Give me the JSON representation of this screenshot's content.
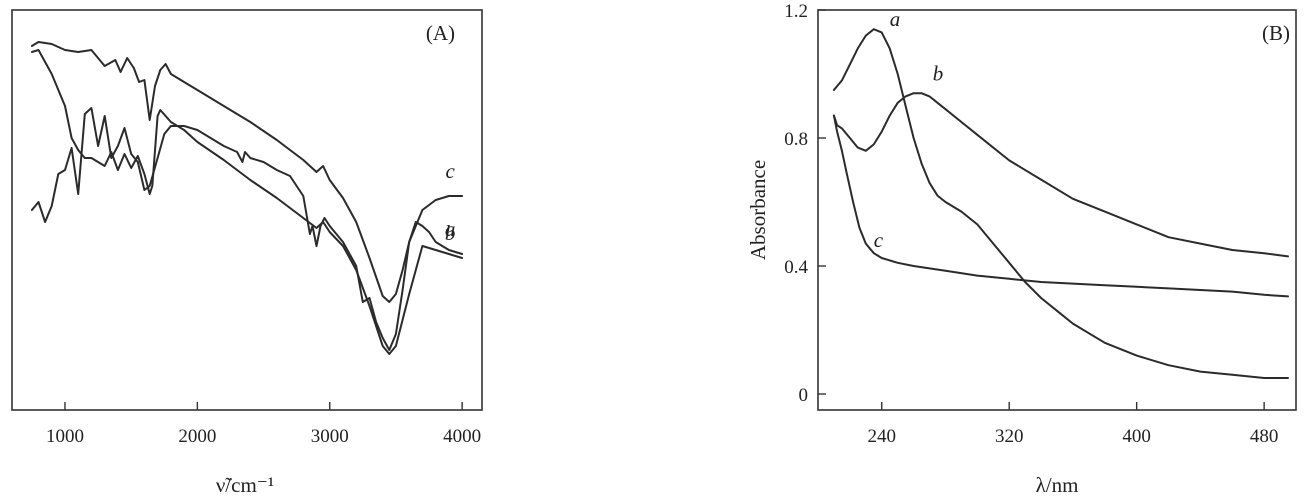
{
  "chart_data": [
    {
      "panel": "(A)",
      "type": "line",
      "xlabel": "ν̃/cm⁻¹",
      "ylabel": "",
      "xlim": [
        600,
        4150
      ],
      "x_ticks": [
        1000,
        2000,
        3000,
        4000
      ],
      "y_ticks": [],
      "grid": false,
      "note_y": "unlabeled y-axis; values are relative transmittance with vertical offsets",
      "series": [
        {
          "name": "a",
          "x": [
            750,
            800,
            900,
            1000,
            1100,
            1200,
            1300,
            1380,
            1420,
            1470,
            1520,
            1560,
            1600,
            1640,
            1680,
            1720,
            1760,
            1800,
            1900,
            2000,
            2200,
            2400,
            2600,
            2800,
            2900,
            2950,
            3000,
            3100,
            3200,
            3300,
            3400,
            3450,
            3500,
            3550,
            3600,
            3650,
            3700,
            3750,
            3800,
            3900,
            4000
          ],
          "y": [
            9.1,
            9.2,
            9.15,
            9.0,
            8.95,
            9.0,
            8.6,
            8.75,
            8.45,
            8.8,
            8.55,
            8.2,
            8.25,
            7.25,
            8.1,
            8.5,
            8.65,
            8.4,
            8.2,
            8.0,
            7.6,
            7.2,
            6.75,
            6.25,
            5.95,
            6.1,
            5.75,
            5.3,
            4.7,
            3.8,
            2.85,
            2.7,
            2.9,
            3.5,
            4.2,
            4.7,
            4.6,
            4.45,
            4.2,
            4.0,
            3.9
          ]
        },
        {
          "name": "b",
          "x": [
            750,
            800,
            900,
            1000,
            1050,
            1100,
            1150,
            1200,
            1300,
            1350,
            1400,
            1450,
            1500,
            1550,
            1600,
            1640,
            1660,
            1700,
            1720,
            1800,
            1900,
            2000,
            2200,
            2400,
            2600,
            2800,
            2900,
            2950,
            3000,
            3100,
            3200,
            3300,
            3400,
            3450,
            3500,
            3600,
            3700,
            3800,
            3900,
            4000
          ],
          "y": [
            8.95,
            9.0,
            8.4,
            7.6,
            6.8,
            6.5,
            6.3,
            6.3,
            6.1,
            6.45,
            6.0,
            6.4,
            6.05,
            6.35,
            5.9,
            5.4,
            5.6,
            7.35,
            7.5,
            7.2,
            7.0,
            6.7,
            6.25,
            5.75,
            5.3,
            4.8,
            4.55,
            4.7,
            4.45,
            4.1,
            3.5,
            2.6,
            1.6,
            1.4,
            1.6,
            2.9,
            4.1,
            4.0,
            3.9,
            3.8
          ]
        },
        {
          "name": "c",
          "x": [
            750,
            800,
            850,
            900,
            950,
            1000,
            1050,
            1100,
            1150,
            1200,
            1250,
            1300,
            1350,
            1400,
            1450,
            1500,
            1550,
            1600,
            1640,
            1700,
            1750,
            1800,
            1900,
            2000,
            2100,
            2200,
            2300,
            2340,
            2360,
            2400,
            2500,
            2600,
            2700,
            2800,
            2850,
            2870,
            2900,
            2930,
            2960,
            3000,
            3100,
            3200,
            3250,
            3300,
            3350,
            3400,
            3450,
            3500,
            3550,
            3600,
            3700,
            3800,
            3900,
            4000
          ],
          "y": [
            5.0,
            5.2,
            4.7,
            5.1,
            5.9,
            6.0,
            6.55,
            5.4,
            7.4,
            7.55,
            6.6,
            7.35,
            6.3,
            6.6,
            7.05,
            6.4,
            6.2,
            5.5,
            5.6,
            6.3,
            6.9,
            7.1,
            7.1,
            7.0,
            6.8,
            6.6,
            6.45,
            6.2,
            6.45,
            6.3,
            6.2,
            6.0,
            5.85,
            5.35,
            4.4,
            4.6,
            4.1,
            4.6,
            4.8,
            4.6,
            4.2,
            3.6,
            2.7,
            2.8,
            2.2,
            1.8,
            1.5,
            1.9,
            3.0,
            4.2,
            5.0,
            5.25,
            5.35,
            5.35
          ]
        }
      ],
      "series_labels": [
        "a",
        "b",
        "c"
      ]
    },
    {
      "panel": "(B)",
      "type": "line",
      "xlabel": "λ/nm",
      "ylabel": "Absorbance",
      "xlim": [
        200,
        500
      ],
      "ylim": [
        -0.05,
        1.2
      ],
      "x_ticks": [
        240,
        320,
        400,
        480
      ],
      "y_ticks": [
        0,
        0.4,
        0.8,
        1.2
      ],
      "y_tick_labels": [
        "0",
        "0.4",
        "0.8",
        "1.2"
      ],
      "grid": false,
      "series": [
        {
          "name": "a",
          "x": [
            210,
            215,
            220,
            225,
            230,
            235,
            240,
            245,
            250,
            255,
            260,
            265,
            270,
            275,
            280,
            290,
            300,
            310,
            320,
            330,
            340,
            350,
            360,
            380,
            400,
            420,
            440,
            460,
            480,
            495
          ],
          "y": [
            0.95,
            0.98,
            1.03,
            1.08,
            1.12,
            1.14,
            1.13,
            1.08,
            1.0,
            0.9,
            0.8,
            0.72,
            0.66,
            0.62,
            0.6,
            0.57,
            0.53,
            0.47,
            0.41,
            0.35,
            0.3,
            0.26,
            0.22,
            0.16,
            0.12,
            0.09,
            0.07,
            0.06,
            0.05,
            0.05
          ]
        },
        {
          "name": "b",
          "x": [
            210,
            212,
            215,
            220,
            225,
            230,
            235,
            240,
            245,
            250,
            255,
            260,
            265,
            270,
            275,
            280,
            290,
            300,
            320,
            340,
            360,
            380,
            400,
            420,
            440,
            460,
            480,
            495
          ],
          "y": [
            0.87,
            0.84,
            0.83,
            0.8,
            0.77,
            0.76,
            0.78,
            0.82,
            0.87,
            0.91,
            0.93,
            0.94,
            0.94,
            0.93,
            0.91,
            0.89,
            0.85,
            0.81,
            0.73,
            0.67,
            0.61,
            0.57,
            0.53,
            0.49,
            0.47,
            0.45,
            0.44,
            0.43
          ]
        },
        {
          "name": "c",
          "x": [
            210,
            212,
            215,
            218,
            222,
            226,
            230,
            235,
            240,
            250,
            260,
            280,
            300,
            320,
            340,
            360,
            380,
            400,
            420,
            440,
            460,
            480,
            495
          ],
          "y": [
            0.87,
            0.82,
            0.76,
            0.69,
            0.6,
            0.52,
            0.47,
            0.44,
            0.425,
            0.41,
            0.4,
            0.385,
            0.37,
            0.36,
            0.35,
            0.345,
            0.34,
            0.335,
            0.33,
            0.325,
            0.32,
            0.31,
            0.305
          ]
        }
      ],
      "series_labels": [
        "a",
        "b",
        "c"
      ]
    }
  ]
}
